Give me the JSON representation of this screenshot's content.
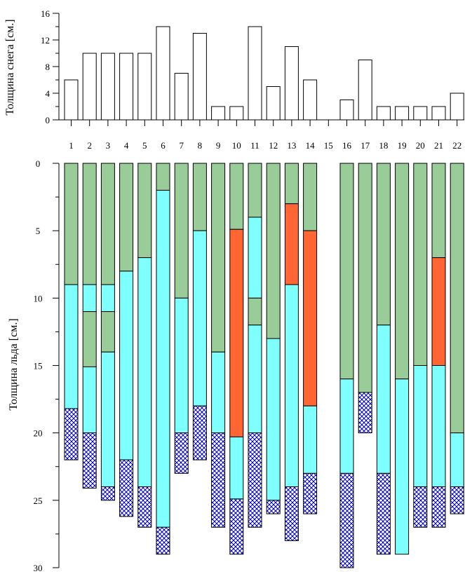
{
  "chart_data": [
    {
      "type": "bar",
      "xlabel": "",
      "ylabel": "Толщина снега [см.]",
      "ylim": [
        0,
        16
      ],
      "yticks": [
        "0",
        "4",
        "8",
        "12",
        "16"
      ],
      "categories": [
        "1",
        "2",
        "3",
        "4",
        "5",
        "6",
        "7",
        "8",
        "9",
        "10",
        "11",
        "12",
        "13",
        "14",
        "15",
        "16",
        "17",
        "18",
        "19",
        "20",
        "21",
        "22"
      ],
      "values": [
        6,
        10,
        10,
        10,
        10,
        14,
        7,
        13,
        2,
        2,
        14,
        5,
        11,
        6,
        0,
        3,
        9,
        2,
        2,
        2,
        2,
        4
      ],
      "colors": {
        "bar_fill": "#ffffff",
        "bar_stroke": "#000000"
      }
    },
    {
      "type": "bar",
      "stacked": true,
      "xlabel": "",
      "ylabel": "Толщина льда [см.]",
      "ylim": [
        0,
        30
      ],
      "y_inverted": true,
      "yticks": [
        "0",
        "5",
        "10",
        "15",
        "20",
        "25",
        "30"
      ],
      "categories": [
        "1",
        "2",
        "3",
        "4",
        "5",
        "6",
        "7",
        "8",
        "9",
        "10",
        "11",
        "12",
        "13",
        "14",
        "15",
        "16",
        "17",
        "18",
        "19",
        "20",
        "21",
        "22"
      ],
      "colors": {
        "green": "#99cc99",
        "cyan": "#80ffff",
        "orange": "#ff6633",
        "hatch": "#0000aa"
      },
      "columns": [
        [
          {
            "layer": "green",
            "from": 0,
            "to": 9
          },
          {
            "layer": "cyan",
            "from": 9,
            "to": 18.2
          },
          {
            "layer": "hatch",
            "from": 18.2,
            "to": 22
          }
        ],
        [
          {
            "layer": "green",
            "from": 0,
            "to": 9
          },
          {
            "layer": "cyan",
            "from": 9,
            "to": 11
          },
          {
            "layer": "green",
            "from": 11,
            "to": 15.1
          },
          {
            "layer": "cyan",
            "from": 15.1,
            "to": 20
          },
          {
            "layer": "hatch",
            "from": 20,
            "to": 24.1
          }
        ],
        [
          {
            "layer": "green",
            "from": 0,
            "to": 9
          },
          {
            "layer": "cyan",
            "from": 9,
            "to": 11
          },
          {
            "layer": "green",
            "from": 11,
            "to": 14
          },
          {
            "layer": "cyan",
            "from": 14,
            "to": 24
          },
          {
            "layer": "hatch",
            "from": 24,
            "to": 25
          }
        ],
        [
          {
            "layer": "green",
            "from": 0,
            "to": 8
          },
          {
            "layer": "cyan",
            "from": 8,
            "to": 22
          },
          {
            "layer": "hatch",
            "from": 22,
            "to": 26.2
          }
        ],
        [
          {
            "layer": "green",
            "from": 0,
            "to": 7
          },
          {
            "layer": "cyan",
            "from": 7,
            "to": 24
          },
          {
            "layer": "hatch",
            "from": 24,
            "to": 27
          }
        ],
        [
          {
            "layer": "green",
            "from": 0,
            "to": 2
          },
          {
            "layer": "cyan",
            "from": 2,
            "to": 27
          },
          {
            "layer": "hatch",
            "from": 27,
            "to": 29
          }
        ],
        [
          {
            "layer": "green",
            "from": 0,
            "to": 10
          },
          {
            "layer": "cyan",
            "from": 10,
            "to": 20
          },
          {
            "layer": "hatch",
            "from": 20,
            "to": 23
          }
        ],
        [
          {
            "layer": "green",
            "from": 0,
            "to": 5
          },
          {
            "layer": "cyan",
            "from": 5,
            "to": 18
          },
          {
            "layer": "hatch",
            "from": 18,
            "to": 22
          }
        ],
        [
          {
            "layer": "green",
            "from": 0,
            "to": 14
          },
          {
            "layer": "cyan",
            "from": 14,
            "to": 20
          },
          {
            "layer": "hatch",
            "from": 20,
            "to": 27
          }
        ],
        [
          {
            "layer": "green",
            "from": 0,
            "to": 4.9
          },
          {
            "layer": "orange",
            "from": 4.9,
            "to": 20.3
          },
          {
            "layer": "cyan",
            "from": 20.3,
            "to": 24.9
          },
          {
            "layer": "hatch",
            "from": 24.9,
            "to": 29
          }
        ],
        [
          {
            "layer": "green",
            "from": 0,
            "to": 4
          },
          {
            "layer": "cyan",
            "from": 4,
            "to": 10
          },
          {
            "layer": "green",
            "from": 10,
            "to": 12
          },
          {
            "layer": "cyan",
            "from": 12,
            "to": 20
          },
          {
            "layer": "hatch",
            "from": 20,
            "to": 27
          }
        ],
        [
          {
            "layer": "green",
            "from": 0,
            "to": 13
          },
          {
            "layer": "cyan",
            "from": 13,
            "to": 25
          },
          {
            "layer": "hatch",
            "from": 25,
            "to": 26
          }
        ],
        [
          {
            "layer": "green",
            "from": 0,
            "to": 3
          },
          {
            "layer": "orange",
            "from": 3,
            "to": 9
          },
          {
            "layer": "cyan",
            "from": 9,
            "to": 24
          },
          {
            "layer": "hatch",
            "from": 24,
            "to": 28
          }
        ],
        [
          {
            "layer": "green",
            "from": 0,
            "to": 5
          },
          {
            "layer": "orange",
            "from": 5,
            "to": 18
          },
          {
            "layer": "cyan",
            "from": 18,
            "to": 23
          },
          {
            "layer": "hatch",
            "from": 23,
            "to": 26
          }
        ],
        [],
        [
          {
            "layer": "green",
            "from": 0,
            "to": 16
          },
          {
            "layer": "cyan",
            "from": 16,
            "to": 23
          },
          {
            "layer": "hatch",
            "from": 23,
            "to": 30
          }
        ],
        [
          {
            "layer": "green",
            "from": 0,
            "to": 17
          },
          {
            "layer": "hatch",
            "from": 17,
            "to": 20
          }
        ],
        [
          {
            "layer": "green",
            "from": 0,
            "to": 12
          },
          {
            "layer": "cyan",
            "from": 12,
            "to": 23
          },
          {
            "layer": "hatch",
            "from": 23,
            "to": 29
          }
        ],
        [
          {
            "layer": "green",
            "from": 0,
            "to": 16
          },
          {
            "layer": "cyan",
            "from": 16,
            "to": 29
          }
        ],
        [
          {
            "layer": "green",
            "from": 0,
            "to": 15
          },
          {
            "layer": "cyan",
            "from": 15,
            "to": 24
          },
          {
            "layer": "hatch",
            "from": 24,
            "to": 27
          }
        ],
        [
          {
            "layer": "green",
            "from": 0,
            "to": 7
          },
          {
            "layer": "orange",
            "from": 7,
            "to": 15
          },
          {
            "layer": "cyan",
            "from": 15,
            "to": 24
          },
          {
            "layer": "hatch",
            "from": 24,
            "to": 27
          }
        ],
        [
          {
            "layer": "green",
            "from": 0,
            "to": 20
          },
          {
            "layer": "cyan",
            "from": 20,
            "to": 24
          },
          {
            "layer": "hatch",
            "from": 24,
            "to": 26
          }
        ]
      ]
    }
  ]
}
